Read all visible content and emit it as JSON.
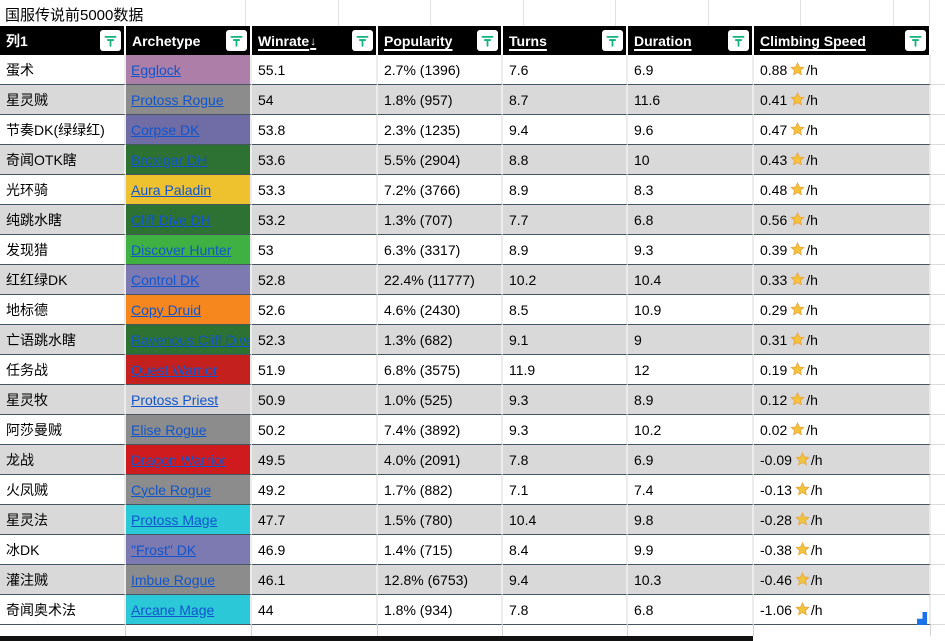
{
  "title": "国服传说前5000数据",
  "colors": {
    "header_bg": "#000000",
    "header_text": "#ffffff",
    "filter_icon_green": "#14b37d",
    "link_blue": "#1155cc",
    "row_alt_gray": "#d9d9d9",
    "row_white": "#ffffff",
    "row_border_dark": "#46555e",
    "star_gold": "#f2c33c",
    "fill_handle_blue": "#1a73e8",
    "bottom_strip": "#121212"
  },
  "table": {
    "climb_unit": "/h",
    "columns": [
      {
        "key": "name",
        "label": "列1",
        "underline": false,
        "sort": ""
      },
      {
        "key": "archetype",
        "label": "Archetype",
        "underline": false,
        "sort": ""
      },
      {
        "key": "winrate",
        "label": "Winrate",
        "underline": true,
        "sort": "↓"
      },
      {
        "key": "popularity",
        "label": "Popularity",
        "underline": true,
        "sort": ""
      },
      {
        "key": "turns",
        "label": "Turns",
        "underline": true,
        "sort": ""
      },
      {
        "key": "duration",
        "label": "Duration",
        "underline": true,
        "sort": ""
      },
      {
        "key": "climbing",
        "label": "Climbing Speed",
        "underline": true,
        "sort": ""
      }
    ],
    "rows": [
      {
        "name_cn": "蛋术",
        "archetype": "Egglock",
        "color": "#ad7fa8",
        "winrate": "55.1",
        "popularity": "2.7% (1396)",
        "turns": "7.6",
        "duration": "6.9",
        "climb": "0.88"
      },
      {
        "name_cn": "星灵贼",
        "archetype": "Protoss Rogue",
        "color": "#8c8c8c",
        "winrate": "54",
        "popularity": "1.8% (957)",
        "turns": "8.7",
        "duration": "11.6",
        "climb": "0.41"
      },
      {
        "name_cn": "节奏DK(绿绿红)",
        "archetype": "Corpse DK",
        "color": "#6f6ca6",
        "winrate": "53.8",
        "popularity": "2.3% (1235)",
        "turns": "9.4",
        "duration": "9.6",
        "climb": "0.47"
      },
      {
        "name_cn": "奇闻OTK瞎",
        "archetype": "Broxigar DH",
        "color": "#2d7233",
        "winrate": "53.6",
        "popularity": "5.5% (2904)",
        "turns": "8.8",
        "duration": "10",
        "climb": "0.43"
      },
      {
        "name_cn": "光环骑",
        "archetype": "Aura Paladin",
        "color": "#eec22e",
        "winrate": "53.3",
        "popularity": "7.2% (3766)",
        "turns": "8.9",
        "duration": "8.3",
        "climb": "0.48"
      },
      {
        "name_cn": "纯跳水瞎",
        "archetype": "Cliff Dive DH",
        "color": "#2d7233",
        "winrate": "53.2",
        "popularity": "1.3% (707)",
        "turns": "7.7",
        "duration": "6.8",
        "climb": "0.56"
      },
      {
        "name_cn": "发现猎",
        "archetype": "Discover Hunter",
        "color": "#3fb142",
        "winrate": "53",
        "popularity": "6.3% (3317)",
        "turns": "8.9",
        "duration": "9.3",
        "climb": "0.39"
      },
      {
        "name_cn": "红红绿DK",
        "archetype": "Control DK",
        "color": "#7d7ab2",
        "winrate": "52.8",
        "popularity": "22.4% (11777)",
        "turns": "10.2",
        "duration": "10.4",
        "climb": "0.33"
      },
      {
        "name_cn": "地标德",
        "archetype": "Copy Druid",
        "color": "#f6871f",
        "winrate": "52.6",
        "popularity": "4.6% (2430)",
        "turns": "8.5",
        "duration": "10.9",
        "climb": "0.29"
      },
      {
        "name_cn": "亡语跳水瞎",
        "archetype": "Ravenous Cliff Dive DH",
        "color": "#2d7233",
        "winrate": "52.3",
        "popularity": "1.3% (682)",
        "turns": "9.1",
        "duration": "9",
        "climb": "0.31"
      },
      {
        "name_cn": "任务战",
        "archetype": "Quest Warrior",
        "color": "#c4201e",
        "winrate": "51.9",
        "popularity": "6.8% (3575)",
        "turns": "11.9",
        "duration": "12",
        "climb": "0.19"
      },
      {
        "name_cn": "星灵牧",
        "archetype": "Protoss Priest",
        "color": "#d4d2d2",
        "winrate": "50.9",
        "popularity": "1.0% (525)",
        "turns": "9.3",
        "duration": "8.9",
        "climb": "0.12"
      },
      {
        "name_cn": "阿莎曼贼",
        "archetype": "Elise Rogue",
        "color": "#8c8c8c",
        "winrate": "50.2",
        "popularity": "7.4% (3892)",
        "turns": "9.3",
        "duration": "10.2",
        "climb": "0.02"
      },
      {
        "name_cn": "龙战",
        "archetype": "Dragon Warrior",
        "color": "#cf1b1e",
        "winrate": "49.5",
        "popularity": "4.0% (2091)",
        "turns": "7.8",
        "duration": "6.9",
        "climb": "-0.09"
      },
      {
        "name_cn": "火凤贼",
        "archetype": "Cycle Rogue",
        "color": "#8c8c8c",
        "winrate": "49.2",
        "popularity": "1.7% (882)",
        "turns": "7.1",
        "duration": "7.4",
        "climb": "-0.13"
      },
      {
        "name_cn": "星灵法",
        "archetype": "Protoss Mage",
        "color": "#2bc8d8",
        "winrate": "47.7",
        "popularity": "1.5% (780)",
        "turns": "10.4",
        "duration": "9.8",
        "climb": "-0.28"
      },
      {
        "name_cn": "冰DK",
        "archetype": "\"Frost\" DK",
        "color": "#7d7ab2",
        "winrate": "46.9",
        "popularity": "1.4% (715)",
        "turns": "8.4",
        "duration": "9.9",
        "climb": "-0.38"
      },
      {
        "name_cn": "灌注贼",
        "archetype": "Imbue Rogue",
        "color": "#8c8c8c",
        "winrate": "46.1",
        "popularity": "12.8% (6753)",
        "turns": "9.4",
        "duration": "10.3",
        "climb": "-0.46"
      },
      {
        "name_cn": "奇闻奥术法",
        "archetype": "Arcane Mage",
        "color": "#2bc8d8",
        "winrate": "44",
        "popularity": "1.8% (934)",
        "turns": "7.8",
        "duration": "6.8",
        "climb": "-1.06"
      }
    ]
  }
}
